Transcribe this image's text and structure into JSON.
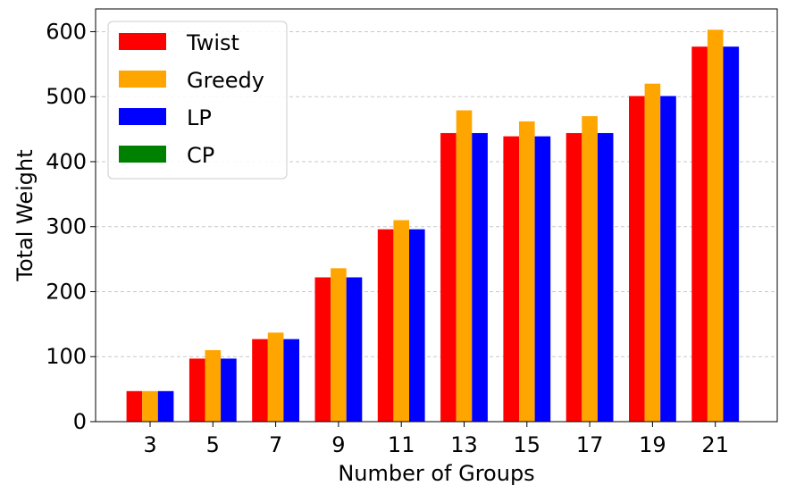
{
  "chart_data": {
    "type": "bar",
    "title": "",
    "xlabel": "Number of Groups",
    "ylabel": "Total Weight",
    "categories": [
      "3",
      "5",
      "7",
      "9",
      "11",
      "13",
      "15",
      "17",
      "19",
      "21"
    ],
    "ylim": [
      0,
      635
    ],
    "yticks": [
      "0",
      "100",
      "200",
      "300",
      "400",
      "500",
      "600"
    ],
    "grid": "y dashed",
    "legend_position": "upper-left",
    "series": [
      {
        "name": "Twist",
        "color": "#ff0000",
        "values": [
          47,
          97,
          127,
          222,
          296,
          444,
          439,
          444,
          501,
          577
        ]
      },
      {
        "name": "Greedy",
        "color": "#ffa500",
        "values": [
          47,
          110,
          137,
          236,
          310,
          479,
          462,
          470,
          520,
          603
        ]
      },
      {
        "name": "LP",
        "color": "#0000ff",
        "values": [
          47,
          97,
          127,
          222,
          296,
          444,
          439,
          444,
          501,
          577
        ]
      },
      {
        "name": "CP",
        "color": "#008000",
        "values": [
          null,
          null,
          null,
          null,
          null,
          null,
          null,
          null,
          null,
          null
        ]
      }
    ]
  }
}
